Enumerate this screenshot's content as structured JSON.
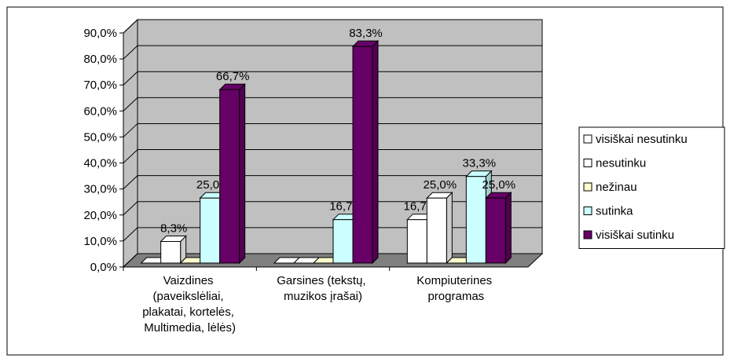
{
  "chart_data": {
    "type": "bar3d",
    "categories": [
      "Vaizdines (paveikslėliai, plakatai, kortelės, Multimedia, lėlės)",
      "Garsines (tekstų, muzikos įrašai)",
      "Kompiuterines programas"
    ],
    "series": [
      {
        "name": "visiškai nesutinku",
        "color": "#ffffff",
        "values": [
          0,
          0,
          16.7
        ],
        "value_labels": [
          null,
          null,
          "16,7%"
        ]
      },
      {
        "name": "nesutinku",
        "color": "#ffffff",
        "values": [
          8.3,
          0,
          25
        ],
        "value_labels": [
          "8,3%",
          null,
          "25,0%"
        ]
      },
      {
        "name": "nežinau",
        "color": "#ffffcc",
        "values": [
          0,
          0,
          0
        ],
        "value_labels": [
          null,
          null,
          null
        ]
      },
      {
        "name": "sutinka",
        "color": "#ccffff",
        "values": [
          25,
          16.7,
          33.3
        ],
        "value_labels": [
          "25,0%",
          "16,7%",
          "33,3%"
        ]
      },
      {
        "name": "visiškai sutinku",
        "color": "#660066",
        "values": [
          66.7,
          83.3,
          25
        ],
        "value_labels": [
          "66,7%",
          "83,3%",
          "25,0%"
        ]
      }
    ],
    "ylim": [
      0,
      90
    ],
    "yticks": [
      {
        "value": 0,
        "label": "0,0%"
      },
      {
        "value": 10,
        "label": "10,0%"
      },
      {
        "value": 20,
        "label": "20,0%"
      },
      {
        "value": 30,
        "label": "30,0%"
      },
      {
        "value": 40,
        "label": "40,0%"
      },
      {
        "value": 50,
        "label": "50,0%"
      },
      {
        "value": 60,
        "label": "60,0%"
      },
      {
        "value": 70,
        "label": "70,0%"
      },
      {
        "value": 80,
        "label": "80,0%"
      },
      {
        "value": 90,
        "label": "90,0%"
      }
    ],
    "grid": true,
    "legend": "right",
    "wall_color": "#c0c0c0"
  }
}
